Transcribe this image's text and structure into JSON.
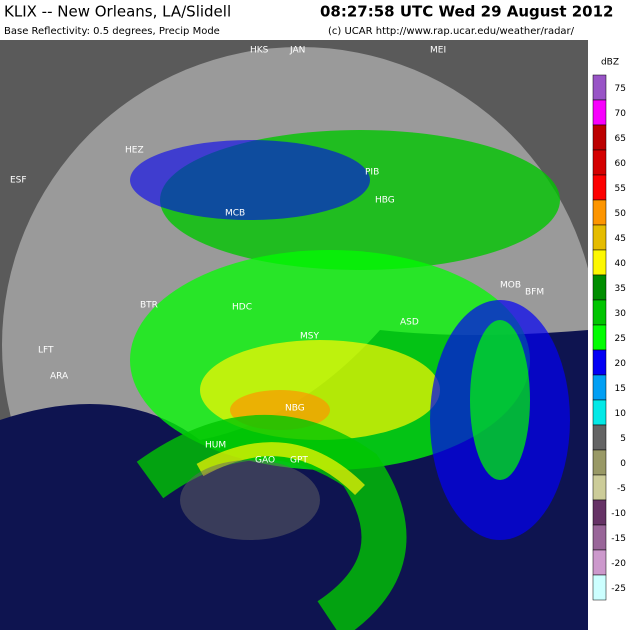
{
  "header": {
    "title": "KLIX -- New Orleans, LA/Slidell",
    "time": "08:27:58 UTC Wed 29 August 2012",
    "subtitle": "Base Reflectivity: 0.5 degrees, Precip Mode",
    "credit": "(c) UCAR  http://www.rap.ucar.edu/weather/radar/"
  },
  "legend": {
    "unit": "dBZ",
    "levels": [
      {
        "label": "75",
        "color": "#9854c6"
      },
      {
        "label": "70",
        "color": "#f800fd"
      },
      {
        "label": "65",
        "color": "#bc0000"
      },
      {
        "label": "60",
        "color": "#d40000"
      },
      {
        "label": "55",
        "color": "#fd0000"
      },
      {
        "label": "50",
        "color": "#fd9500"
      },
      {
        "label": "45",
        "color": "#e5bc00"
      },
      {
        "label": "40",
        "color": "#fdf802"
      },
      {
        "label": "35",
        "color": "#008e00"
      },
      {
        "label": "30",
        "color": "#01c501"
      },
      {
        "label": "25",
        "color": "#02fd02"
      },
      {
        "label": "20",
        "color": "#0300f4"
      },
      {
        "label": "15",
        "color": "#019ff4"
      },
      {
        "label": "10",
        "color": "#04e9e7"
      },
      {
        "label": "5",
        "color": "#646464"
      },
      {
        "label": "0",
        "color": "#999966"
      },
      {
        "label": "-5",
        "color": "#cccc99"
      },
      {
        "label": "-10",
        "color": "#663366"
      },
      {
        "label": "-15",
        "color": "#996699"
      },
      {
        "label": "-20",
        "color": "#cc99cc"
      },
      {
        "label": "-25",
        "color": "#ccffff"
      }
    ]
  },
  "map_labels": [
    "HKS",
    "JAN",
    "MEI",
    "HEZ",
    "ESF",
    "PIB",
    "MCB",
    "HBG",
    "MOB",
    "BFM",
    "BTR",
    "HDC",
    "ASD",
    "GPT",
    "LFT",
    "ARA",
    "MSY",
    "NBG",
    "HUM",
    "GAO"
  ]
}
